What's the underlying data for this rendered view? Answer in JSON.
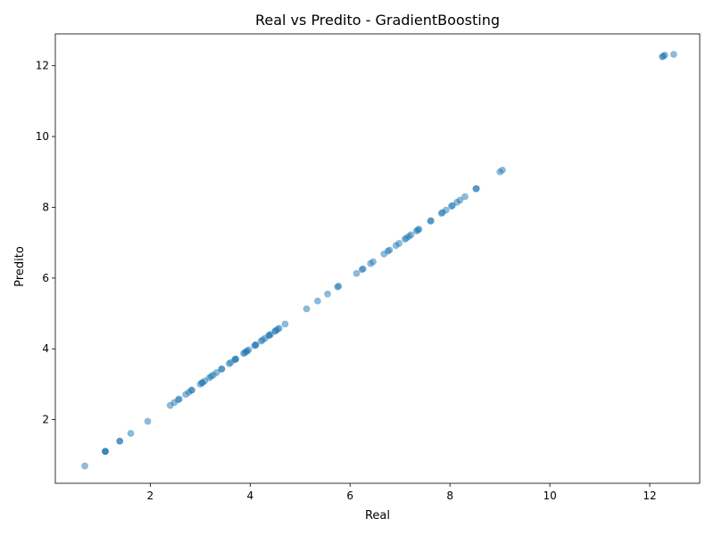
{
  "chart_data": {
    "type": "scatter",
    "title": "Real vs Predito - GradientBoosting",
    "xlabel": "Real",
    "ylabel": "Predito",
    "xlim": [
      0.1,
      13.0
    ],
    "ylim": [
      0.2,
      12.9
    ],
    "xticks": [
      2,
      4,
      6,
      8,
      10,
      12
    ],
    "yticks": [
      2,
      4,
      6,
      8,
      10,
      12
    ],
    "grid": false,
    "point_color": "#1f77b4",
    "point_alpha": 0.5,
    "points": [
      [
        0.69,
        0.69
      ],
      [
        1.1,
        1.1
      ],
      [
        1.1,
        1.1
      ],
      [
        1.1,
        1.1
      ],
      [
        1.39,
        1.39
      ],
      [
        1.39,
        1.39
      ],
      [
        1.61,
        1.61
      ],
      [
        1.95,
        1.95
      ],
      [
        2.4,
        2.4
      ],
      [
        2.48,
        2.48
      ],
      [
        2.56,
        2.56
      ],
      [
        2.58,
        2.58
      ],
      [
        2.71,
        2.71
      ],
      [
        2.77,
        2.77
      ],
      [
        2.83,
        2.83
      ],
      [
        2.83,
        2.83
      ],
      [
        3.0,
        3.0
      ],
      [
        3.04,
        3.04
      ],
      [
        3.04,
        3.04
      ],
      [
        3.09,
        3.09
      ],
      [
        3.18,
        3.18
      ],
      [
        3.22,
        3.22
      ],
      [
        3.26,
        3.26
      ],
      [
        3.33,
        3.33
      ],
      [
        3.43,
        3.43
      ],
      [
        3.43,
        3.43
      ],
      [
        3.58,
        3.58
      ],
      [
        3.61,
        3.61
      ],
      [
        3.69,
        3.69
      ],
      [
        3.71,
        3.71
      ],
      [
        3.71,
        3.71
      ],
      [
        3.87,
        3.87
      ],
      [
        3.89,
        3.89
      ],
      [
        3.93,
        3.93
      ],
      [
        3.93,
        3.93
      ],
      [
        3.97,
        3.97
      ],
      [
        4.09,
        4.09
      ],
      [
        4.11,
        4.11
      ],
      [
        4.11,
        4.11
      ],
      [
        4.22,
        4.22
      ],
      [
        4.25,
        4.25
      ],
      [
        4.3,
        4.3
      ],
      [
        4.38,
        4.38
      ],
      [
        4.38,
        4.38
      ],
      [
        4.41,
        4.41
      ],
      [
        4.5,
        4.5
      ],
      [
        4.51,
        4.51
      ],
      [
        4.55,
        4.55
      ],
      [
        4.58,
        4.58
      ],
      [
        4.7,
        4.7
      ],
      [
        5.13,
        5.13
      ],
      [
        5.35,
        5.35
      ],
      [
        5.55,
        5.55
      ],
      [
        5.75,
        5.75
      ],
      [
        5.77,
        5.77
      ],
      [
        6.13,
        6.13
      ],
      [
        6.24,
        6.24
      ],
      [
        6.26,
        6.26
      ],
      [
        6.41,
        6.41
      ],
      [
        6.46,
        6.46
      ],
      [
        6.68,
        6.68
      ],
      [
        6.76,
        6.76
      ],
      [
        6.79,
        6.79
      ],
      [
        6.92,
        6.92
      ],
      [
        6.98,
        6.98
      ],
      [
        7.1,
        7.1
      ],
      [
        7.13,
        7.13
      ],
      [
        7.18,
        7.18
      ],
      [
        7.22,
        7.22
      ],
      [
        7.33,
        7.33
      ],
      [
        7.36,
        7.36
      ],
      [
        7.38,
        7.38
      ],
      [
        7.61,
        7.61
      ],
      [
        7.62,
        7.62
      ],
      [
        7.83,
        7.83
      ],
      [
        7.85,
        7.85
      ],
      [
        7.92,
        7.92
      ],
      [
        8.03,
        8.03
      ],
      [
        8.05,
        8.05
      ],
      [
        8.14,
        8.14
      ],
      [
        8.2,
        8.2
      ],
      [
        8.3,
        8.3
      ],
      [
        8.52,
        8.52
      ],
      [
        8.53,
        8.53
      ],
      [
        9.0,
        9.0
      ],
      [
        9.05,
        9.05
      ],
      [
        12.25,
        12.25
      ],
      [
        12.27,
        12.27
      ],
      [
        12.3,
        12.3
      ],
      [
        12.48,
        12.32
      ]
    ]
  }
}
